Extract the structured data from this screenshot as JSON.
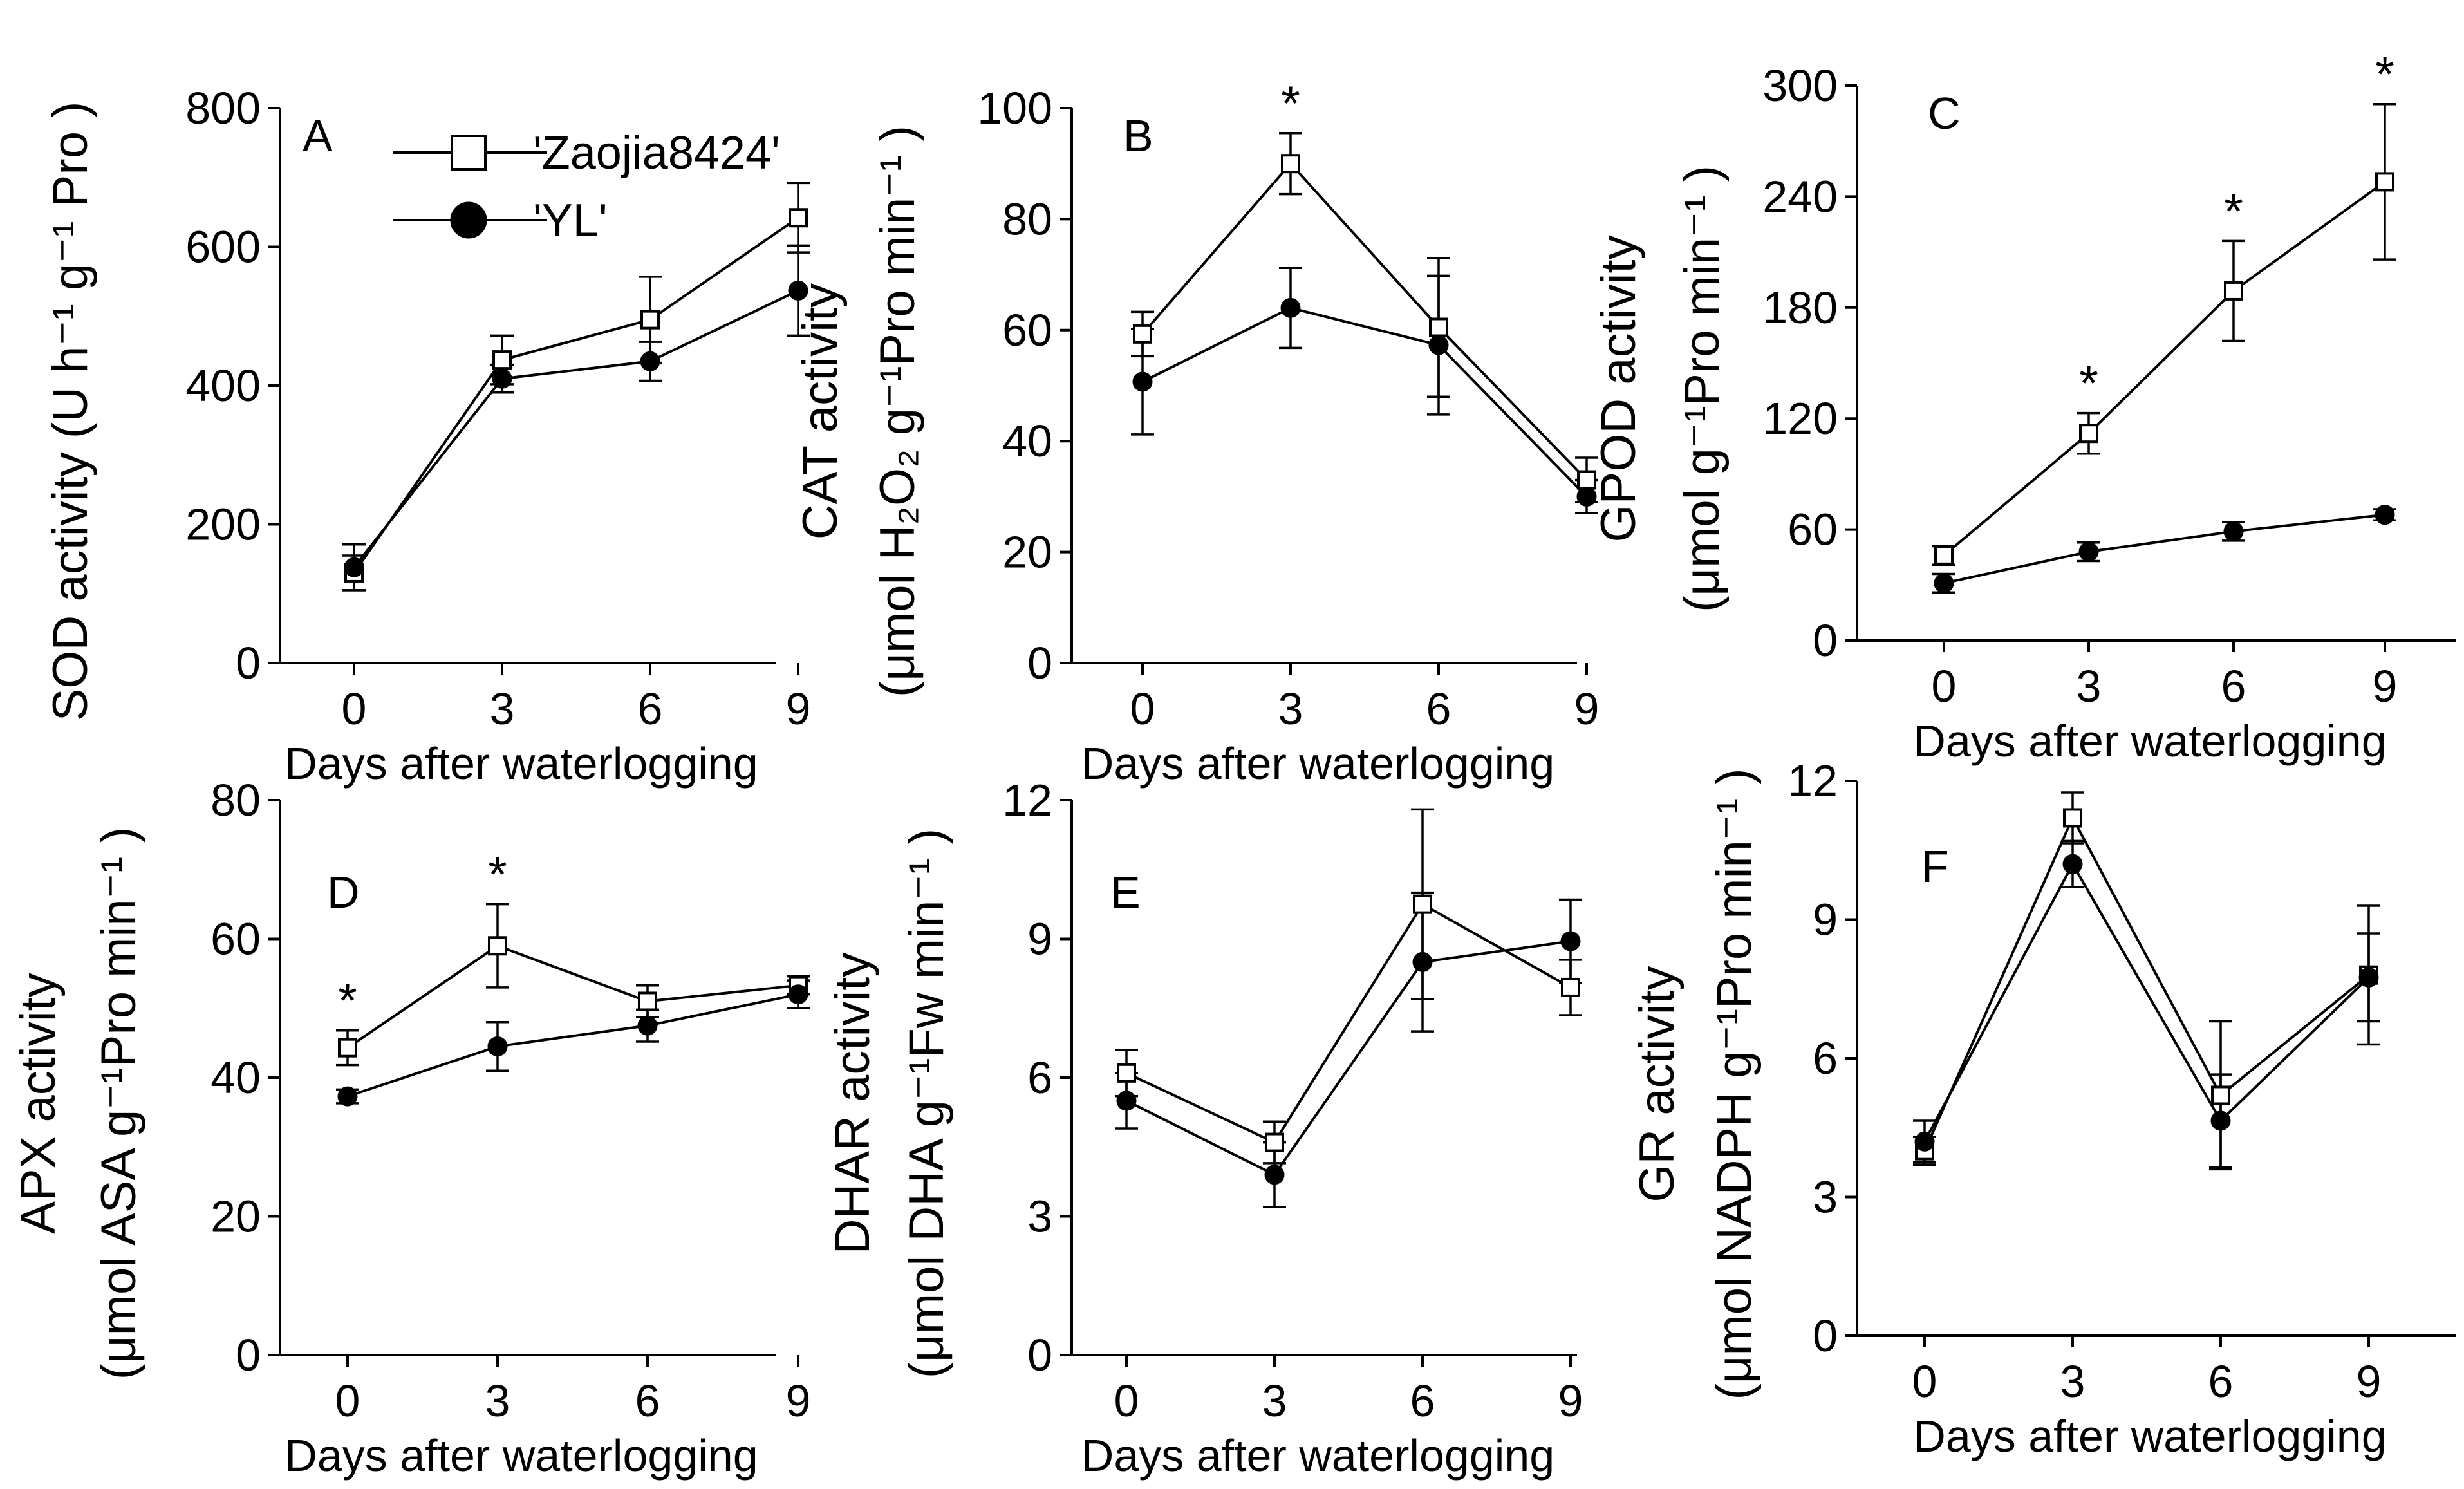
{
  "legend": {
    "zaojia": "'Zaojia8424'",
    "yl": "'YL'"
  },
  "chart_data": [
    {
      "panel": "A",
      "type": "line",
      "x": [
        0,
        3,
        6,
        9
      ],
      "xlabel": "Days after waterlogging",
      "ylabel_lines": [
        "SOD activity (U h⁻¹ g⁻¹ Pro )"
      ],
      "yticks": [
        0,
        200,
        400,
        600,
        800
      ],
      "ylim": [
        0,
        800
      ],
      "series": [
        {
          "name": "'Zaojia8424'",
          "marker": "open-square",
          "values": [
            130,
            437,
            495,
            642
          ],
          "errors": [
            25,
            35,
            62,
            50
          ]
        },
        {
          "name": "'YL'",
          "marker": "filled-circle",
          "values": [
            138,
            410,
            435,
            537
          ],
          "errors": [
            33,
            20,
            28,
            65
          ]
        }
      ],
      "stars": []
    },
    {
      "panel": "B",
      "type": "line",
      "x": [
        0,
        3,
        6,
        9
      ],
      "xlabel": "Days after waterlogging",
      "ylabel_lines": [
        "CAT activity",
        "(μmol H₂O₂ g⁻¹Pro min⁻¹ )"
      ],
      "yticks": [
        0,
        20,
        40,
        60,
        80,
        100
      ],
      "ylim": [
        0,
        100
      ],
      "series": [
        {
          "name": "'Zaojia8424'",
          "marker": "open-square",
          "values": [
            59.3,
            90,
            60.5,
            33
          ],
          "errors": [
            4,
            5.5,
            12.5,
            4
          ]
        },
        {
          "name": "'YL'",
          "marker": "filled-circle",
          "values": [
            50.7,
            64,
            57.3,
            30
          ],
          "errors": [
            9.5,
            7.2,
            12.5,
            3
          ]
        }
      ],
      "stars": [
        {
          "x": 3,
          "label": "*"
        }
      ]
    },
    {
      "panel": "C",
      "type": "line",
      "x": [
        0,
        3,
        6,
        9
      ],
      "xlabel": "Days after waterlogging",
      "ylabel_lines": [
        "GPOD activity",
        "(μmol g⁻¹Pro min⁻¹ )"
      ],
      "yticks": [
        0,
        60,
        120,
        180,
        240,
        300
      ],
      "ylim": [
        0,
        300
      ],
      "series": [
        {
          "name": "'Zaojia8424'",
          "marker": "open-square",
          "values": [
            46,
            112,
            189,
            248
          ],
          "errors": [
            5,
            11,
            27,
            42
          ]
        },
        {
          "name": "'YL'",
          "marker": "filled-circle",
          "values": [
            31,
            48,
            59,
            68
          ],
          "errors": [
            5,
            5,
            5,
            3
          ]
        }
      ],
      "stars": [
        {
          "x": 3,
          "label": "*"
        },
        {
          "x": 6,
          "label": "*"
        },
        {
          "x": 9,
          "label": "*"
        }
      ]
    },
    {
      "panel": "D",
      "type": "line",
      "x": [
        0,
        3,
        6,
        9
      ],
      "xlabel": "Days after waterlogging",
      "ylabel_lines": [
        "APX activity",
        "(μmol ASA g⁻¹Pro min⁻¹ )"
      ],
      "yticks": [
        0,
        20,
        40,
        60,
        80
      ],
      "ylim": [
        0,
        80
      ],
      "series": [
        {
          "name": "'Zaojia8424'",
          "marker": "open-square",
          "values": [
            44.3,
            59,
            51,
            53.3
          ],
          "errors": [
            2.5,
            6,
            2.3,
            1.3
          ]
        },
        {
          "name": "'YL'",
          "marker": "filled-circle",
          "values": [
            37.3,
            44.5,
            47.5,
            52
          ],
          "errors": [
            1,
            3.5,
            2.3,
            2
          ]
        }
      ],
      "stars": [
        {
          "x": 0,
          "label": "*"
        },
        {
          "x": 3,
          "label": "*"
        }
      ]
    },
    {
      "panel": "E",
      "type": "line",
      "x": [
        0,
        3,
        6,
        9
      ],
      "xlabel": "Days after waterlogging",
      "ylabel_lines": [
        "DHAR activity",
        "(μmol DHA g⁻¹Fw min⁻¹ )"
      ],
      "yticks": [
        0,
        3,
        6,
        9,
        12
      ],
      "ylim": [
        0,
        12
      ],
      "series": [
        {
          "name": "'Zaojia8424'",
          "marker": "open-square",
          "values": [
            6.1,
            4.6,
            9.75,
            7.95
          ],
          "errors": [
            0.5,
            0.45,
            2.05,
            0.6
          ]
        },
        {
          "name": "'YL'",
          "marker": "filled-circle",
          "values": [
            5.5,
            3.9,
            8.5,
            8.95
          ],
          "errors": [
            0.6,
            0.7,
            1.5,
            0.9
          ]
        }
      ],
      "stars": []
    },
    {
      "panel": "F",
      "type": "line",
      "x": [
        0,
        3,
        6,
        9
      ],
      "xlabel": "Days after waterlogging",
      "ylabel_lines": [
        "GR activity",
        "(μmol NADPH g⁻¹Pro min⁻¹ )"
      ],
      "yticks": [
        0,
        3,
        6,
        9,
        12
      ],
      "ylim": [
        0,
        12
      ],
      "series": [
        {
          "name": "'Zaojia8424'",
          "marker": "open-square",
          "values": [
            4.0,
            11.2,
            5.2,
            7.8
          ],
          "errors": [
            0.3,
            0.55,
            1.6,
            1.5
          ]
        },
        {
          "name": "'YL'",
          "marker": "filled-circle",
          "values": [
            4.2,
            10.2,
            4.65,
            7.75
          ],
          "errors": [
            0.45,
            0.5,
            1.0,
            0.95
          ]
        }
      ],
      "stars": []
    }
  ]
}
